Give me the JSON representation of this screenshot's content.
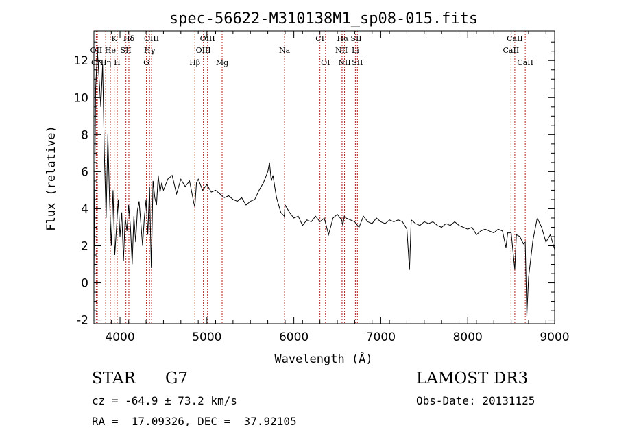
{
  "chart_data": {
    "type": "line",
    "title": "spec-56622-M310138M1_sp08-015.fits",
    "xlabel": "Wavelength (Å)",
    "ylabel": "Flux (relative)",
    "xlim": [
      3700,
      9000
    ],
    "ylim": [
      -2.2,
      13.6
    ],
    "x_ticks": [
      4000,
      5000,
      6000,
      7000,
      8000,
      9000
    ],
    "y_ticks": [
      -2,
      0,
      2,
      4,
      6,
      8,
      10,
      12
    ],
    "series_color": "#000000",
    "line_marker_color": "#b22222",
    "series": [
      {
        "x": [
          3700,
          3720,
          3740,
          3760,
          3780,
          3800,
          3820,
          3840,
          3860,
          3880,
          3900,
          3920,
          3940,
          3960,
          3980,
          4000,
          4020,
          4040,
          4060,
          4080,
          4100,
          4120,
          4140,
          4160,
          4180,
          4200,
          4220,
          4240,
          4260,
          4280,
          4300,
          4320,
          4340,
          4360,
          4380,
          4400,
          4420,
          4440,
          4460,
          4480,
          4500,
          4550,
          4600,
          4650,
          4700,
          4750,
          4800,
          4850,
          4861,
          4880,
          4900,
          4950,
          5000,
          5050,
          5100,
          5150,
          5200,
          5250,
          5300,
          5350,
          5400,
          5450,
          5500,
          5550,
          5600,
          5650,
          5700,
          5720,
          5740,
          5760,
          5780,
          5800,
          5850,
          5890,
          5900,
          5950,
          6000,
          6050,
          6100,
          6150,
          6200,
          6250,
          6300,
          6350,
          6400,
          6450,
          6500,
          6550,
          6563,
          6580,
          6600,
          6650,
          6700,
          6750,
          6800,
          6850,
          6900,
          6950,
          7000,
          7050,
          7100,
          7150,
          7200,
          7250,
          7300,
          7330,
          7350,
          7400,
          7450,
          7500,
          7550,
          7600,
          7650,
          7700,
          7750,
          7800,
          7850,
          7900,
          7950,
          8000,
          8050,
          8100,
          8150,
          8200,
          8250,
          8300,
          8350,
          8400,
          8440,
          8460,
          8500,
          8542,
          8560,
          8600,
          8640,
          8662,
          8680,
          8700,
          8750,
          8800,
          8850,
          8900,
          8950,
          9000
        ],
        "y": [
          0.2,
          10.5,
          12.5,
          11.0,
          9.5,
          11.8,
          7.0,
          3.5,
          8.0,
          4.5,
          2.0,
          5.0,
          1.5,
          3.0,
          4.5,
          2.5,
          3.8,
          1.2,
          3.5,
          2.8,
          4.2,
          3.0,
          1.0,
          3.6,
          2.2,
          3.9,
          4.4,
          3.2,
          2.0,
          3.5,
          4.5,
          2.6,
          5.2,
          0.8,
          5.5,
          4.6,
          4.2,
          5.8,
          4.9,
          5.4,
          5.0,
          5.6,
          5.8,
          4.8,
          5.6,
          5.2,
          5.5,
          4.3,
          4.1,
          5.4,
          5.6,
          5.0,
          5.3,
          4.9,
          5.0,
          4.8,
          4.6,
          4.7,
          4.5,
          4.4,
          4.6,
          4.2,
          4.4,
          4.5,
          5.0,
          5.4,
          6.0,
          6.5,
          5.5,
          5.8,
          5.2,
          4.6,
          3.8,
          3.6,
          4.2,
          3.8,
          3.5,
          3.6,
          3.1,
          3.4,
          3.3,
          3.6,
          3.3,
          3.5,
          2.6,
          3.5,
          3.7,
          3.4,
          3.1,
          3.6,
          3.5,
          3.4,
          3.3,
          3.0,
          3.6,
          3.3,
          3.2,
          3.5,
          3.3,
          3.2,
          3.4,
          3.3,
          3.4,
          3.3,
          2.9,
          0.7,
          3.4,
          3.2,
          3.1,
          3.3,
          3.2,
          3.3,
          3.1,
          3.0,
          3.2,
          3.1,
          3.3,
          3.1,
          3.0,
          2.9,
          3.0,
          2.6,
          2.8,
          2.9,
          2.8,
          2.7,
          2.9,
          2.8,
          1.9,
          2.7,
          2.7,
          0.7,
          2.6,
          2.5,
          2.1,
          2.2,
          -1.8,
          0.3,
          2.3,
          3.5,
          3.0,
          2.2,
          2.6,
          1.8
        ]
      }
    ],
    "line_ids": [
      {
        "label": "Hδ",
        "x": 4102,
        "row": 0
      },
      {
        "label": "K",
        "x": 3934,
        "row": 0
      },
      {
        "label": "Hδ",
        "x": 4102,
        "row": 0
      },
      {
        "label": "OIII",
        "x": 4363,
        "row": 0
      },
      {
        "label": "OIII",
        "x": 5007,
        "row": 0
      },
      {
        "label": "CI",
        "x": 6300,
        "row": 0
      },
      {
        "label": "Hα",
        "x": 6563,
        "row": 0
      },
      {
        "label": "SII",
        "x": 6717,
        "row": 0
      },
      {
        "label": "CaII",
        "x": 8542,
        "row": 0
      },
      {
        "label": "OII",
        "x": 3727,
        "row": 1
      },
      {
        "label": "He",
        "x": 3889,
        "row": 1
      },
      {
        "label": "SII",
        "x": 4068,
        "row": 1
      },
      {
        "label": "Hγ",
        "x": 4340,
        "row": 1
      },
      {
        "label": "OIII",
        "x": 4959,
        "row": 1
      },
      {
        "label": "Na",
        "x": 5893,
        "row": 1
      },
      {
        "label": "NII",
        "x": 6548,
        "row": 1
      },
      {
        "label": "Li",
        "x": 6708,
        "row": 1
      },
      {
        "label": "CaII",
        "x": 8498,
        "row": 1
      },
      {
        "label": "CN",
        "x": 3740,
        "row": 2
      },
      {
        "label": "Hη",
        "x": 3835,
        "row": 2
      },
      {
        "label": "H",
        "x": 3968,
        "row": 2
      },
      {
        "label": "G",
        "x": 4304,
        "row": 2
      },
      {
        "label": "Hβ",
        "x": 4861,
        "row": 2
      },
      {
        "label": "Mg",
        "x": 5175,
        "row": 2
      },
      {
        "label": "OI",
        "x": 6364,
        "row": 2
      },
      {
        "label": "NII",
        "x": 6583,
        "row": 2
      },
      {
        "label": "SII",
        "x": 6731,
        "row": 2
      },
      {
        "label": "CaII",
        "x": 8662,
        "row": 2
      }
    ]
  },
  "info": {
    "object_class": "STAR",
    "subclass": "G7",
    "survey": "LAMOST DR3",
    "redshift_line": "cz = -64.9 ± 73.2 km/s",
    "obs_date_line": "Obs-Date: 20131125",
    "coords_line": "RA =  17.09326, DEC =  37.92105"
  }
}
